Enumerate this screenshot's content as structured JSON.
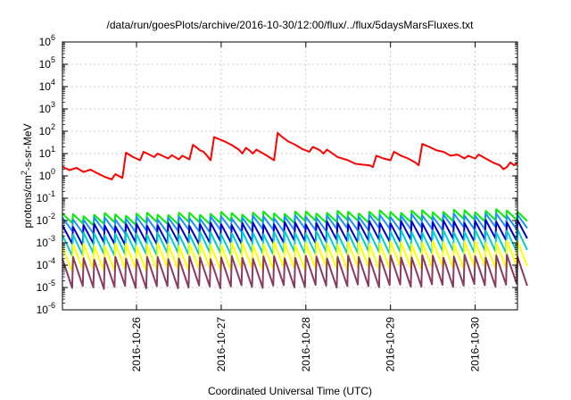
{
  "chart_data": {
    "type": "line",
    "title": "/data/run/goesPlots/archive/2016-10-30/12:00/flux/../flux/5daysMarsFluxes.txt",
    "xlabel": "Coordinated Universal Time (UTC)",
    "ylabel": {
      "prefix": "protons/cm",
      "sup": "2",
      "suffix": "-s-sr-MeV"
    },
    "x_range": [
      "2016-10-25T03:00",
      "2016-10-30T12:00"
    ],
    "x_ticks": [
      "2016-10-26",
      "2016-10-27",
      "2016-10-28",
      "2016-10-29",
      "2016-10-30"
    ],
    "y_scale": "log",
    "ylim": [
      1e-06,
      1000000.0
    ],
    "y_ticks": [
      {
        "base": "10",
        "exp": "-6"
      },
      {
        "base": "10",
        "exp": "-5"
      },
      {
        "base": "10",
        "exp": "-4"
      },
      {
        "base": "10",
        "exp": "-3"
      },
      {
        "base": "10",
        "exp": "-2"
      },
      {
        "base": "10",
        "exp": "-1"
      },
      {
        "base": "10",
        "exp": "0"
      },
      {
        "base": "10",
        "exp": "1"
      },
      {
        "base": "10",
        "exp": "2"
      },
      {
        "base": "10",
        "exp": "3"
      },
      {
        "base": "10",
        "exp": "4"
      },
      {
        "base": "10",
        "exp": "5"
      },
      {
        "base": "10",
        "exp": "6"
      }
    ],
    "grid": true,
    "sawtooth_period_hours": 3,
    "series": [
      {
        "color": "#ff0000",
        "points": [
          [
            "2016-10-25T03:00",
            2.6
          ],
          [
            "2016-10-25T05:00",
            1.8
          ],
          [
            "2016-10-25T07:00",
            2.3
          ],
          [
            "2016-10-25T09:00",
            1.5
          ],
          [
            "2016-10-25T11:00",
            1.9
          ],
          [
            "2016-10-25T13:00",
            1.3
          ],
          [
            "2016-10-25T15:00",
            0.9
          ],
          [
            "2016-10-25T17:00",
            0.7
          ],
          [
            "2016-10-25T18:00",
            1.2
          ],
          [
            "2016-10-25T20:00",
            0.8
          ],
          [
            "2016-10-25T21:00",
            11
          ],
          [
            "2016-10-25T23:00",
            7
          ],
          [
            "2016-10-26T01:00",
            5
          ],
          [
            "2016-10-26T02:00",
            12
          ],
          [
            "2016-10-26T05:00",
            7
          ],
          [
            "2016-10-26T06:00",
            10
          ],
          [
            "2016-10-26T09:00",
            6
          ],
          [
            "2016-10-26T10:00",
            8.5
          ],
          [
            "2016-10-26T12:00",
            5.5
          ],
          [
            "2016-10-26T13:00",
            8
          ],
          [
            "2016-10-26T15:00",
            5.5
          ],
          [
            "2016-10-26T16:00",
            25
          ],
          [
            "2016-10-26T18:00",
            14
          ],
          [
            "2016-10-26T19:00",
            12
          ],
          [
            "2016-10-26T20:00",
            8
          ],
          [
            "2016-10-26T21:00",
            5
          ],
          [
            "2016-10-26T22:00",
            55
          ],
          [
            "2016-10-27T01:00",
            35
          ],
          [
            "2016-10-27T03:00",
            24
          ],
          [
            "2016-10-27T05:00",
            15
          ],
          [
            "2016-10-27T06:00",
            10
          ],
          [
            "2016-10-27T07:00",
            18
          ],
          [
            "2016-10-27T08:00",
            14
          ],
          [
            "2016-10-27T09:00",
            10
          ],
          [
            "2016-10-27T10:00",
            15
          ],
          [
            "2016-10-27T13:00",
            8
          ],
          [
            "2016-10-27T15:00",
            5
          ],
          [
            "2016-10-27T16:00",
            85
          ],
          [
            "2016-10-27T17:00",
            60
          ],
          [
            "2016-10-27T19:00",
            35
          ],
          [
            "2016-10-27T21:00",
            25
          ],
          [
            "2016-10-27T23:00",
            16
          ],
          [
            "2016-10-28T01:00",
            12
          ],
          [
            "2016-10-28T02:00",
            20
          ],
          [
            "2016-10-28T04:00",
            14
          ],
          [
            "2016-10-28T05:00",
            10
          ],
          [
            "2016-10-28T06:00",
            15
          ],
          [
            "2016-10-28T08:00",
            9
          ],
          [
            "2016-10-28T09:00",
            7
          ],
          [
            "2016-10-28T12:00",
            5
          ],
          [
            "2016-10-28T14:00",
            3.5
          ],
          [
            "2016-10-28T16:00",
            3.2
          ],
          [
            "2016-10-28T18:00",
            3
          ],
          [
            "2016-10-28T19:00",
            2.5
          ],
          [
            "2016-10-28T20:00",
            8
          ],
          [
            "2016-10-28T22:00",
            6
          ],
          [
            "2016-10-29T00:00",
            5
          ],
          [
            "2016-10-29T01:00",
            12
          ],
          [
            "2016-10-29T03:00",
            8
          ],
          [
            "2016-10-29T05:00",
            6
          ],
          [
            "2016-10-29T07:00",
            4
          ],
          [
            "2016-10-29T08:00",
            3
          ],
          [
            "2016-10-29T09:00",
            27
          ],
          [
            "2016-10-29T11:00",
            20
          ],
          [
            "2016-10-29T13:00",
            14
          ],
          [
            "2016-10-29T15:00",
            12
          ],
          [
            "2016-10-29T17:00",
            8
          ],
          [
            "2016-10-29T19:00",
            9
          ],
          [
            "2016-10-29T21:00",
            6
          ],
          [
            "2016-10-29T22:00",
            8
          ],
          [
            "2016-10-30T00:00",
            6
          ],
          [
            "2016-10-30T01:00",
            9
          ],
          [
            "2016-10-30T03:00",
            6
          ],
          [
            "2016-10-30T05:00",
            4
          ],
          [
            "2016-10-30T07:00",
            3
          ],
          [
            "2016-10-30T08:00",
            2
          ],
          [
            "2016-10-30T09:00",
            2.5
          ],
          [
            "2016-10-30T10:00",
            4
          ],
          [
            "2016-10-30T11:00",
            3
          ],
          [
            "2016-10-30T12:00",
            4
          ]
        ]
      },
      {
        "color": "#00ee00",
        "sawtooth": {
          "low": 0.007,
          "high": 0.018,
          "trend": 1.6
        }
      },
      {
        "color": "#1e90ff",
        "sawtooth": {
          "low": 0.003,
          "high": 0.012,
          "trend": 1.6
        }
      },
      {
        "color": "#0000cd",
        "sawtooth": {
          "low": 0.0009,
          "high": 0.006,
          "trend": 1.6
        }
      },
      {
        "color": "#00ced1",
        "sawtooth": {
          "low": 0.0003,
          "high": 0.0025,
          "trend": 1.4
        }
      },
      {
        "color": "#ffff00",
        "sawtooth": {
          "low": 6e-05,
          "high": 0.0008,
          "trend": 1.4
        }
      },
      {
        "color": "#8b3a62",
        "sawtooth": {
          "low": 1e-05,
          "high": 0.0002,
          "trend": 1.3
        }
      }
    ]
  }
}
